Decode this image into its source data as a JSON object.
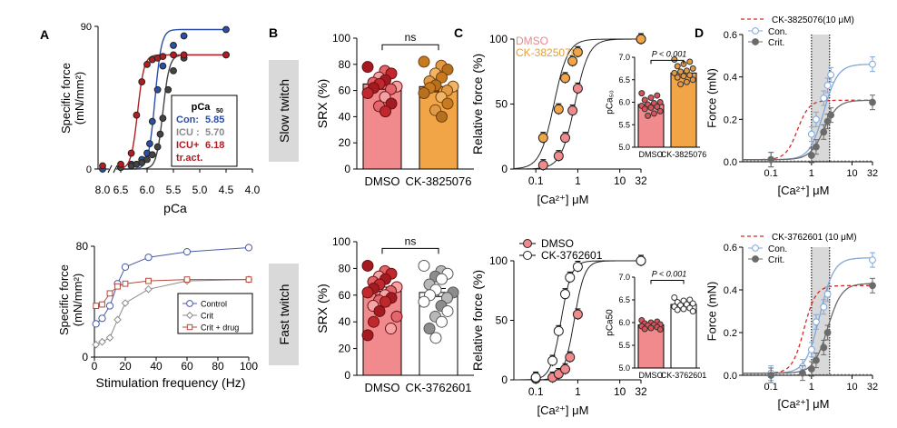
{
  "panel_letters": {
    "a": "A",
    "b": "B",
    "c": "C",
    "d": "D"
  },
  "row_labels": {
    "slow": "Slow twitch",
    "fast": "Fast twitch"
  },
  "colors": {
    "con_blue": "#2b4fa6",
    "icu_grey": "#555555",
    "icu_red": "#b01e23",
    "dmso_fill": "#f08a8d",
    "dmso_dot": "#c0282d",
    "ck1_fill": "#f2a547",
    "ck1_dot": "#b86f1e",
    "fast_dmso_dot": "#a31b21",
    "open_dot": "#ffffff",
    "grey_band": "#d9d9d9",
    "con_light": "#7fa7d8",
    "crit_dark": "#6b6b6b",
    "dashed_red": "#d62728"
  },
  "chart_data": [
    {
      "id": "A_top",
      "type": "line",
      "title": "",
      "xlabel": "pCa",
      "ylabel": [
        "Specific force",
        "(mN/mm²)"
      ],
      "xlim": [
        8.0,
        4.0
      ],
      "x_reversed": true,
      "ylim": [
        0,
        90
      ],
      "x_ticks": [
        "8.0",
        "6.5",
        "6.0",
        "5.5",
        "5.0",
        "4.5",
        "4.0"
      ],
      "y_ticks": [
        "0",
        "90"
      ],
      "legend": {
        "title": "pCa",
        "title_sub": "50",
        "position": "right",
        "entries": [
          {
            "name": "Con:",
            "value": "5.85",
            "color": "#2b4fa6"
          },
          {
            "name": "ICU :",
            "value": "5.70",
            "color": "#8a8a8a"
          },
          {
            "name": "ICU+",
            "value": "6.18",
            "color": "#b01e23"
          },
          {
            "name": "tr.act.",
            "value": "",
            "color": "#b01e23"
          }
        ]
      },
      "series": [
        {
          "name": "Con",
          "color": "#2b4fa6",
          "top": 88,
          "ec50": 5.85,
          "hill": 7,
          "x": [
            8.0,
            6.5,
            6.3,
            6.1,
            6.0,
            5.95,
            5.9,
            5.8,
            5.7,
            5.5,
            5.3,
            4.5
          ],
          "y": [
            0,
            1,
            3,
            6,
            10,
            16,
            30,
            50,
            65,
            78,
            84,
            88
          ]
        },
        {
          "name": "ICU",
          "color": "#444444",
          "top": 72,
          "ec50": 5.7,
          "hill": 7,
          "x": [
            6.5,
            6.3,
            6.2,
            6.1,
            6.0,
            5.9,
            5.8,
            5.75,
            5.7,
            5.6,
            5.5,
            5.3,
            4.5
          ],
          "y": [
            1,
            2,
            3,
            4,
            6,
            9,
            14,
            22,
            32,
            50,
            62,
            70,
            72
          ]
        },
        {
          "name": "ICU+ tr.act.",
          "color": "#b01e23",
          "top": 72,
          "ec50": 6.18,
          "hill": 7,
          "x": [
            8.0,
            6.5,
            6.3,
            6.2,
            6.1,
            6.0,
            5.9,
            5.8,
            5.7,
            5.5,
            5.3,
            4.5
          ],
          "y": [
            2,
            3,
            10,
            34,
            55,
            66,
            69,
            70,
            71,
            72,
            72,
            72
          ]
        }
      ]
    },
    {
      "id": "A_bottom",
      "type": "line",
      "title": "",
      "xlabel": "Stimulation frequency (Hz)",
      "ylabel": [
        "Specific force",
        "(mN/mm²)"
      ],
      "xlim": [
        0,
        100
      ],
      "ylim": [
        0,
        80
      ],
      "x_ticks": [
        "0",
        "20",
        "40",
        "60",
        "80",
        "100"
      ],
      "y_ticks": [
        "0",
        "80"
      ],
      "legend_position": "bottom-right",
      "series": [
        {
          "name": "Control",
          "color": "#4a5aa8",
          "marker": "circle",
          "x": [
            1,
            5,
            10,
            15,
            20,
            35,
            60,
            100
          ],
          "y": [
            24,
            28,
            37,
            53,
            65,
            72,
            76,
            79
          ]
        },
        {
          "name": "Crit",
          "color": "#8a8a8a",
          "marker": "diamond",
          "x": [
            1,
            5,
            10,
            15,
            20,
            35,
            60,
            100
          ],
          "y": [
            9,
            11,
            14,
            27,
            39,
            49,
            55,
            56
          ]
        },
        {
          "name": "Crit + drug",
          "color": "#b4493a",
          "marker": "square",
          "x": [
            1,
            5,
            10,
            15,
            20,
            35,
            60,
            100
          ],
          "y": [
            37,
            38,
            46,
            51,
            53,
            55,
            56,
            56
          ]
        }
      ]
    },
    {
      "id": "B_top",
      "type": "bar",
      "title": "",
      "ylabel": "SRX (%)",
      "ylim": [
        0,
        100
      ],
      "y_ticks": [
        "0",
        "20",
        "40",
        "60",
        "80",
        "100"
      ],
      "categories": [
        "DMSO",
        "CK-3825076"
      ],
      "values": [
        65,
        63
      ],
      "errors": [
        4,
        4
      ],
      "significance": "ns",
      "points": [
        [
          78,
          75,
          73,
          70,
          68,
          66,
          65,
          63,
          62,
          61,
          58,
          55,
          50,
          48,
          44
        ],
        [
          82,
          79,
          76,
          73,
          70,
          67,
          64,
          63,
          62,
          60,
          58,
          55,
          50,
          45,
          40
        ]
      ]
    },
    {
      "id": "B_bottom",
      "type": "bar",
      "title": "",
      "ylabel": "SRX (%)",
      "ylim": [
        0,
        100
      ],
      "y_ticks": [
        "0",
        "20",
        "40",
        "60",
        "80",
        "100"
      ],
      "categories": [
        "DMSO",
        "CK-3762601"
      ],
      "values": [
        63,
        62
      ],
      "errors": [
        3,
        3
      ],
      "significance": "ns",
      "points": [
        [
          82,
          78,
          76,
          74,
          72,
          70,
          68,
          66,
          65,
          63,
          62,
          60,
          58,
          56,
          55,
          52,
          48,
          44,
          40,
          35,
          30
        ],
        [
          82,
          78,
          76,
          74,
          72,
          68,
          64,
          62,
          60,
          58,
          55,
          52,
          48,
          44,
          40,
          35,
          28
        ]
      ]
    },
    {
      "id": "C_top",
      "type": "line",
      "title": "",
      "xlabel": "[Ca²⁺] μM",
      "ylabel": "Relative force (%)",
      "x_scale": "log",
      "xlim": [
        0.03,
        32
      ],
      "ylim": [
        0,
        100
      ],
      "x_ticks": [
        "0.1",
        "1",
        "10",
        "32"
      ],
      "y_ticks": [
        "0",
        "50",
        "100"
      ],
      "legend_position": "top-left",
      "series": [
        {
          "name": "DMSO",
          "color": "#e8898c",
          "ec50": 0.85,
          "hill": 2.6,
          "x": [
            0.15,
            0.35,
            0.5,
            0.75,
            1.0,
            32
          ],
          "y": [
            3,
            10,
            24,
            45,
            62,
            100
          ]
        },
        {
          "name": "CK-3825076",
          "color": "#f1a64a",
          "ec50": 0.27,
          "hill": 2.6,
          "x": [
            0.15,
            0.35,
            0.5,
            0.75,
            1.0,
            32
          ],
          "y": [
            24,
            46,
            70,
            83,
            90,
            100
          ]
        }
      ],
      "inset": {
        "ylabel": "pCa₅₀",
        "ylim": [
          5.0,
          7.0
        ],
        "y_ticks": [
          "5.0",
          "5.5",
          "6.0",
          "6.5",
          "7.0"
        ],
        "categories": [
          "DMSO",
          "CK-3825076"
        ],
        "values": [
          5.95,
          6.65
        ],
        "p_value": "P < 0.001",
        "points": [
          [
            6.2,
            6.15,
            6.1,
            6.05,
            6.0,
            5.98,
            5.95,
            5.92,
            5.9,
            5.88,
            5.85,
            5.8,
            5.75,
            5.7
          ],
          [
            6.95,
            6.9,
            6.85,
            6.8,
            6.75,
            6.7,
            6.68,
            6.65,
            6.6,
            6.58,
            6.55,
            6.5,
            6.45,
            6.4
          ]
        ]
      }
    },
    {
      "id": "C_bottom",
      "type": "line",
      "title": "",
      "xlabel": "[Ca²⁺] μM",
      "ylabel": "Relative force (%)",
      "x_scale": "log",
      "xlim": [
        0.03,
        32
      ],
      "ylim": [
        0,
        100
      ],
      "x_ticks": [
        "0.1",
        "1",
        "10",
        "32"
      ],
      "y_ticks": [
        "0",
        "50",
        "100"
      ],
      "legend_position": "top-left",
      "series": [
        {
          "name": "DMSO",
          "color": "#e8898c",
          "ec50": 0.82,
          "hill": 3.5,
          "x": [
            0.1,
            0.25,
            0.35,
            0.5,
            0.65,
            1.0,
            32
          ],
          "y": [
            1,
            2,
            5,
            9,
            19,
            55,
            100
          ]
        },
        {
          "name": "CK-3762601",
          "color": "#ffffff",
          "ec50": 0.4,
          "hill": 3.5,
          "x": [
            0.1,
            0.25,
            0.35,
            0.5,
            0.65,
            1.0,
            32
          ],
          "y": [
            2,
            16,
            41,
            72,
            86,
            95,
            100
          ]
        }
      ],
      "inset": {
        "ylabel": "pCa50",
        "ylim": [
          5.0,
          7.0
        ],
        "y_ticks": [
          "5.0",
          "5.5",
          "6.0",
          "6.5",
          "7.0"
        ],
        "categories": [
          "DMSO",
          "CK-3762601"
        ],
        "values": [
          5.95,
          6.4
        ],
        "p_value": "P < 0.001",
        "points": [
          [
            6.05,
            6.02,
            6.0,
            5.98,
            5.96,
            5.95,
            5.94,
            5.92,
            5.9,
            5.88,
            5.86,
            5.85
          ],
          [
            6.55,
            6.5,
            6.48,
            6.45,
            6.42,
            6.4,
            6.38,
            6.35,
            6.32,
            6.3,
            6.28,
            6.25
          ]
        ]
      }
    },
    {
      "id": "D_top",
      "type": "line",
      "title": "",
      "xlabel": "[Ca²⁺] μM",
      "ylabel": "Force (mN)",
      "x_scale": "log",
      "xlim": [
        0.02,
        32
      ],
      "ylim": [
        0,
        0.6
      ],
      "shaded_band": [
        1.0,
        2.8
      ],
      "x_ticks": [
        "0.1",
        "1",
        "10",
        "32"
      ],
      "y_ticks": [
        "0.0",
        "0.2",
        "0.4",
        "0.6"
      ],
      "legend_position": "top",
      "series": [
        {
          "name": "CK-3825076(10 μM)",
          "style": "dashed",
          "color": "#d62728",
          "top": 0.29,
          "ec50": 0.45,
          "hill": 3
        },
        {
          "name": "Con.",
          "color": "#7fa7d8",
          "top": 0.46,
          "ec50": 2.0,
          "hill": 2.5,
          "x": [
            0.1,
            1.0,
            1.3,
            2.0,
            2.5,
            3.0,
            32
          ],
          "y": [
            0.01,
            0.13,
            0.2,
            0.3,
            0.36,
            0.41,
            0.46
          ]
        },
        {
          "name": "Crit.",
          "color": "#6b6b6b",
          "top": 0.29,
          "ec50": 2.0,
          "hill": 2.5,
          "x": [
            0.1,
            1.0,
            1.3,
            2.0,
            2.5,
            3.0,
            32
          ],
          "y": [
            0.01,
            0.03,
            0.07,
            0.14,
            0.19,
            0.22,
            0.28
          ]
        }
      ]
    },
    {
      "id": "D_bottom",
      "type": "line",
      "title": "",
      "xlabel": "[Ca²⁺] μM",
      "ylabel": "Force (mN)",
      "x_scale": "log",
      "xlim": [
        0.02,
        32
      ],
      "ylim": [
        0,
        0.6
      ],
      "shaded_band": [
        1.0,
        2.8
      ],
      "x_ticks": [
        "0.1",
        "1",
        "10",
        "32"
      ],
      "y_ticks": [
        "0.0",
        "0.2",
        "0.4",
        "0.6"
      ],
      "legend_position": "top",
      "series": [
        {
          "name": "CK-3762601 (10 μM)",
          "style": "dashed",
          "color": "#d62728",
          "top": 0.42,
          "ec50": 0.65,
          "hill": 3
        },
        {
          "name": "Con.",
          "color": "#7fa7d8",
          "top": 0.55,
          "ec50": 1.6,
          "hill": 2.5,
          "x": [
            0.1,
            0.6,
            1.0,
            1.3,
            2.0,
            2.5,
            32
          ],
          "y": [
            0.01,
            0.04,
            0.12,
            0.25,
            0.32,
            0.38,
            0.54
          ]
        },
        {
          "name": "Crit.",
          "color": "#6b6b6b",
          "top": 0.43,
          "ec50": 2.5,
          "hill": 2.5,
          "x": [
            0.1,
            0.6,
            1.0,
            1.3,
            2.0,
            2.5,
            32
          ],
          "y": [
            0.0,
            0.01,
            0.03,
            0.07,
            0.13,
            0.2,
            0.42
          ]
        }
      ]
    }
  ]
}
